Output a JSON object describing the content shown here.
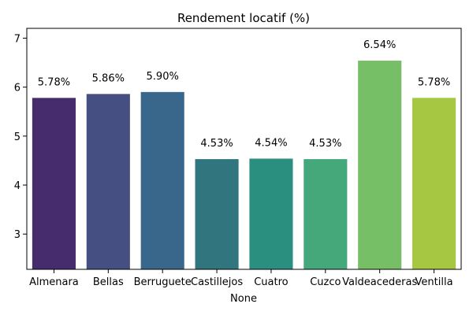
{
  "chart_data": {
    "type": "bar",
    "title": "Rendement locatif (%)",
    "xlabel": "None",
    "ylabel": "",
    "ylim": [
      2.28,
      7.2
    ],
    "yticks": [
      3,
      4,
      5,
      6,
      7
    ],
    "categories": [
      "Almenara",
      "Bellas",
      "Berruguete",
      "Castillejos",
      "Cuatro",
      "Cuzco",
      "Valdeacederas",
      "Ventilla"
    ],
    "values": [
      5.78,
      5.86,
      5.9,
      4.53,
      4.54,
      4.53,
      6.54,
      5.78
    ],
    "data_labels": [
      "5.78%",
      "5.86%",
      "5.90%",
      "4.53%",
      "4.54%",
      "4.53%",
      "6.54%",
      "5.78%"
    ],
    "colors": [
      "#472c6d",
      "#454f82",
      "#39678b",
      "#31767e",
      "#2b8f7f",
      "#44a87a",
      "#76bf66",
      "#a6c741"
    ],
    "grid": false,
    "legend": "none"
  }
}
